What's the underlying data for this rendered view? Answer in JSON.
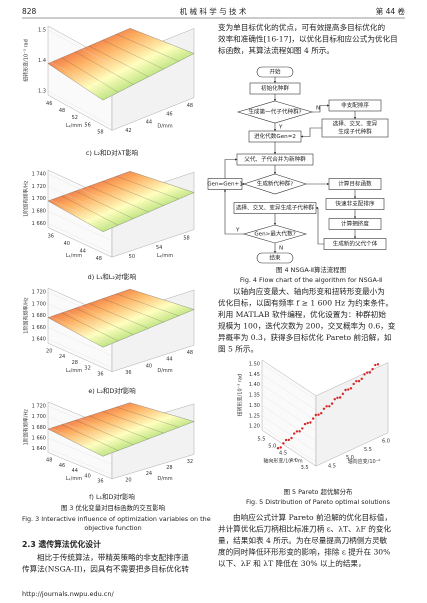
{
  "header": {
    "page": "828",
    "journal": "机 械 科 学 与 技 术",
    "volume": "第 44 卷"
  },
  "figure3": {
    "panels": [
      {
        "y_label": "扭转形变/10⁻³ rad",
        "x_label": "L₂/mm",
        "z_label": "D/mm",
        "yticks": [
          "1.5",
          "1.4",
          "1.3"
        ],
        "xticks": [
          "46",
          "48",
          "52",
          "56",
          "58"
        ],
        "zticks": [
          "42",
          "44",
          "46",
          "48"
        ],
        "caption": "c) L₂和D对λT影响"
      },
      {
        "y_label": "1阶固有频率/Hz",
        "x_label": "L₁/mm",
        "z_label": "L₂/mm",
        "yticks": [
          "1 740",
          "1 720",
          "1 700",
          "1 680",
          "1 660"
        ],
        "xticks": [
          "36",
          "40",
          "44",
          "48"
        ],
        "zticks": [
          "50",
          "54",
          "58"
        ],
        "caption": "d) L₁和L₂对f影响"
      },
      {
        "y_label": "1阶固有频率/Hz",
        "x_label": "L₂/mm",
        "z_label": "D/mm",
        "yticks": [
          "1 720",
          "1 700",
          "1 680",
          "1 660",
          "1 640"
        ],
        "xticks": [
          "20",
          "24",
          "28",
          "32",
          "36"
        ],
        "zticks": [
          "36",
          "40",
          "44",
          "48"
        ],
        "caption": "e) L₂和D对f影响"
      },
      {
        "y_label": "1阶固有频率/Hz",
        "x_label": "L₁/mm",
        "z_label": "D/mm",
        "yticks": [
          "1 720",
          "1 700",
          "1 680",
          "1 660",
          "1 640"
        ],
        "xticks": [
          "48",
          "46",
          "44",
          "40",
          "36"
        ],
        "zticks": [
          "20",
          "24",
          "28",
          "32"
        ],
        "caption": "f) L₁和D对f影响"
      }
    ],
    "caption_cn": "图 3  优化变量对目标函数的交互影响",
    "caption_en": [
      "Fig. 3   Interactive influence of optimization variables on the",
      "objective function"
    ]
  },
  "section": {
    "heading": "2.3  遗传算法优化设计",
    "lines": [
      "相比于传统算法，带精英策略的非支配排序遗",
      "传算法(NSGA-II)，因具有不需要把多目标优化转"
    ]
  },
  "footer_url": "http://journals.nwpu.edu.cn/",
  "right_para1": [
    "变为单目标优化的优点，可有效提高多目标优化的",
    "效率和准确性[16-17]，以优化目标和应公式为优化目",
    "标函数，其算法流程如图 4 所示。"
  ],
  "figure4": {
    "nodes": [
      "开始",
      "初始化种群",
      "生成第一代子代种群?",
      "非支配排序",
      "选择、交叉、变异",
      "生成子代种群",
      "进化代数Gen=2",
      "父代、子代合并为新种群",
      "生成新代种群?",
      "Gen=Gen+1",
      "计算目标函数",
      "快速非支配排序",
      "选择、交叉、变异生成子代种群",
      "计算拥挤度",
      "Gen>最大代数?",
      "生成新的父代个体",
      "结束"
    ],
    "branch_labels": [
      "N",
      "Y",
      "N",
      "Y"
    ],
    "caption_cn": "图 4  NSGA-Ⅱ算法流程图",
    "caption_en": "Fig. 4   Flow chart of the algorithm for NSGA-Ⅱ"
  },
  "right_para2": [
    "以轴向应变最大、轴向形变和扭转形变最小为",
    "优化目标，以固有频率 f ≥ 1 600 Hz 为约束条件。",
    "利用 MATLAB 软件编程，优化设置为：种群初始",
    "规模为 100，迭代次数为 200，交叉概率为 0.6，变",
    "异概率为 0.3，获得多目标优化 Pareto 前沿解，如",
    "图 5 所示。"
  ],
  "figure5": {
    "y_label": "扭转形变/10⁻³ rad",
    "x_label": "轴向形变/10⁻⁶ m",
    "z_label": "轴向应变/10⁻⁶",
    "yticks": [
      "1.50",
      "1.45",
      "1.40",
      "1.35",
      "1.30",
      "1.25",
      "1.20"
    ],
    "xticks": [
      "5.5",
      "5.0",
      "4.5",
      "4.0",
      "3.5"
    ],
    "zticks": [
      "4.5",
      "5.0",
      "5.5",
      "6.0"
    ],
    "caption_cn": "图 5  Pareto 超优解分布",
    "caption_en": "Fig. 5   Distribution of Pareto optimal solutions"
  },
  "right_para3": [
    "由响应公式计算 Pareto 前沿解的优化目标值，",
    "并计算优化后刀柄相比标准刀柄 ε、λT、λF 的变化",
    "量，结果如表 4 所示。为在尽量提高刀柄侧方灵敏",
    "度的同时降低环形形变的影响，排除 ε 提升在 30%",
    "以下、λF 和 λT 降低在 30% 以上的结果，"
  ]
}
